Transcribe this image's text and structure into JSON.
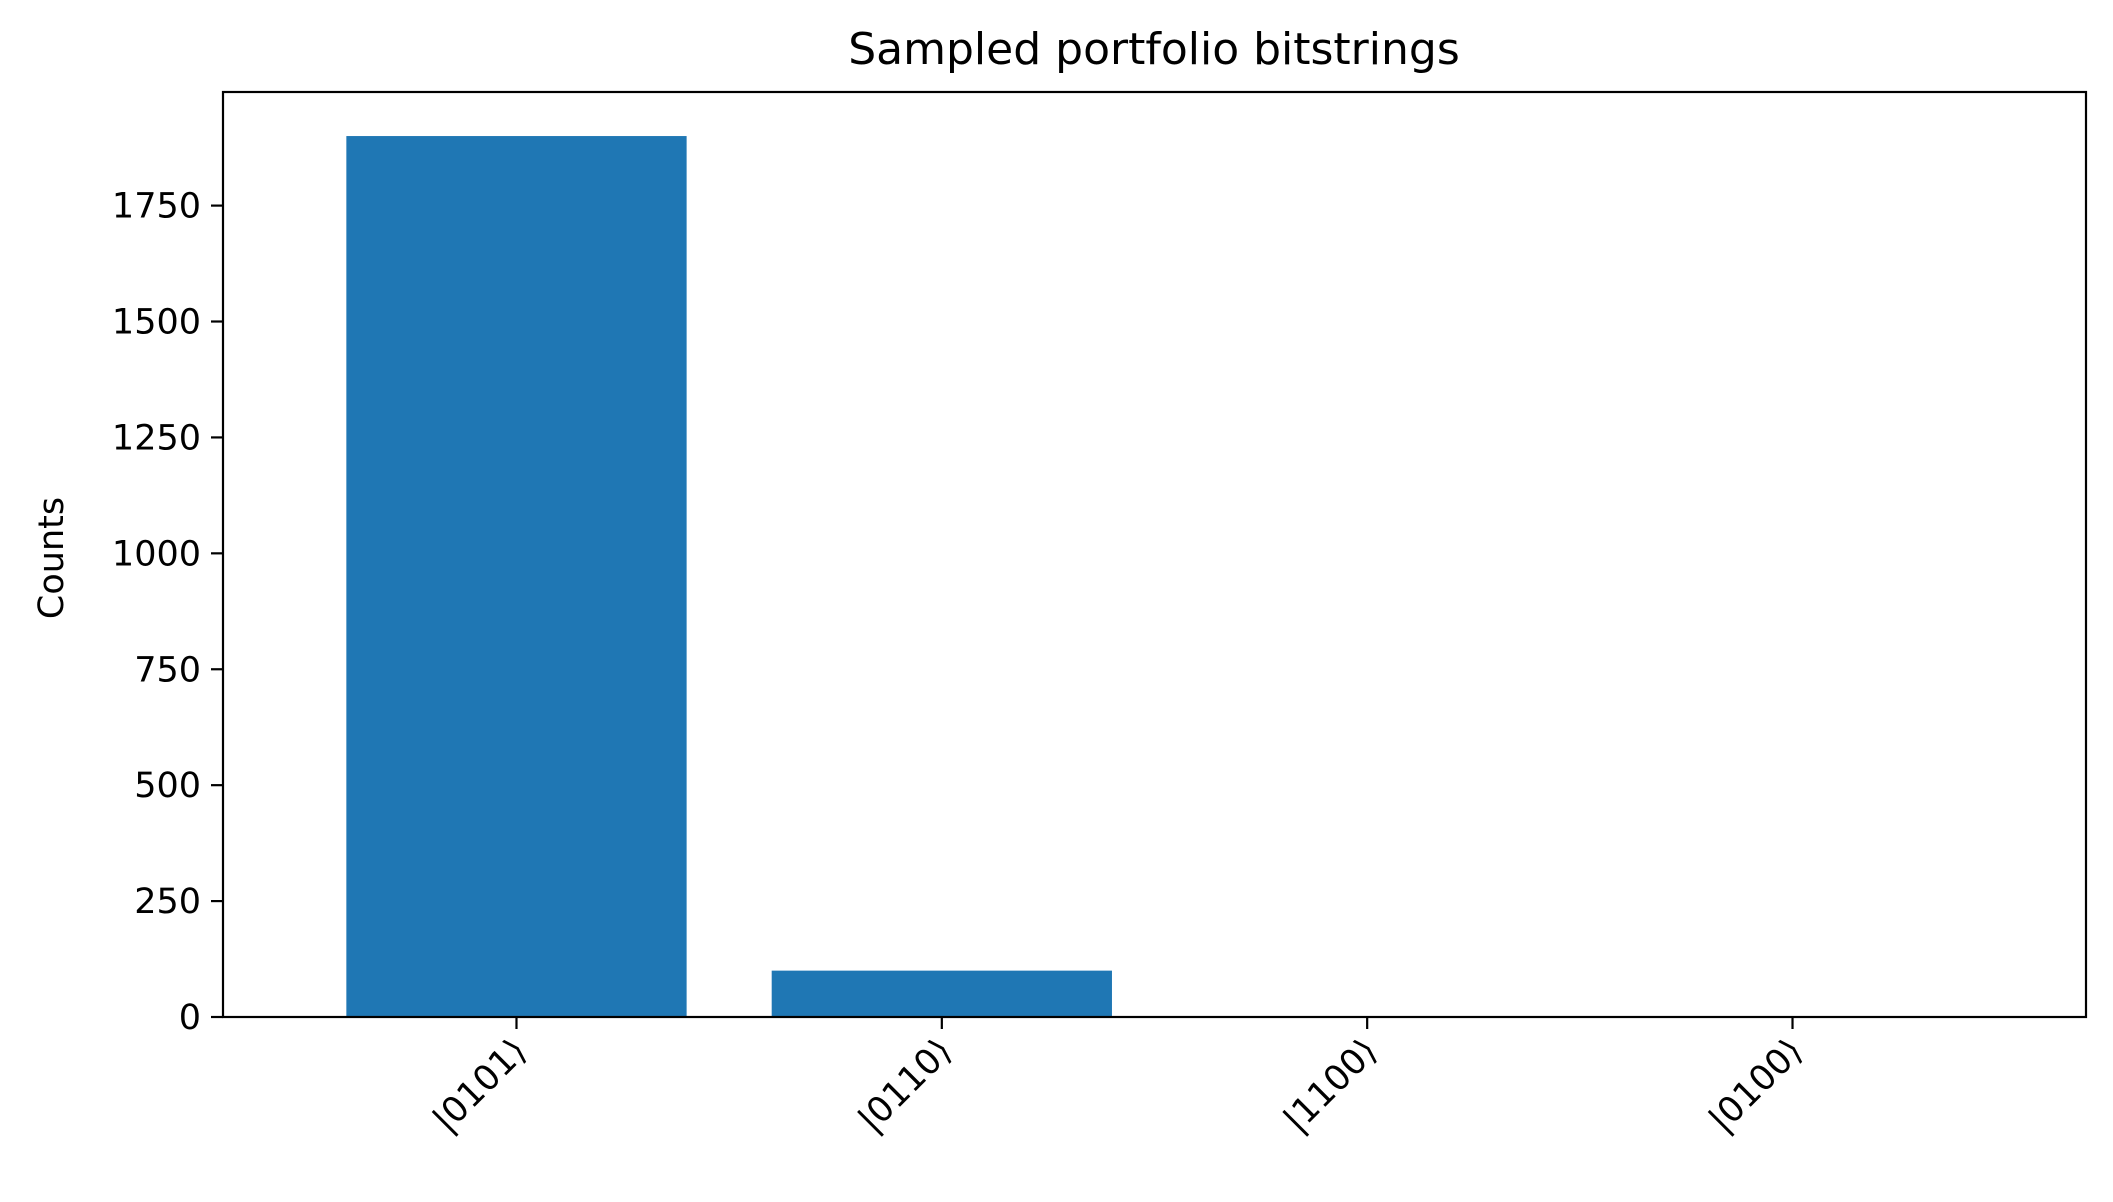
{
  "chart_data": {
    "type": "bar",
    "title": "Sampled portfolio bitstrings",
    "xlabel": "",
    "ylabel": "Counts",
    "categories": [
      "|0101⟩",
      "|0110⟩",
      "|1100⟩",
      "|0100⟩"
    ],
    "values": [
      1900,
      100,
      0,
      0
    ],
    "ylim": [
      0,
      1995
    ],
    "yticks": [
      0,
      250,
      500,
      750,
      1000,
      1250,
      1500,
      1750
    ],
    "xtick_rotation_deg": 45,
    "grid": false,
    "legend": "none",
    "bar_color": "#1f77b4"
  }
}
